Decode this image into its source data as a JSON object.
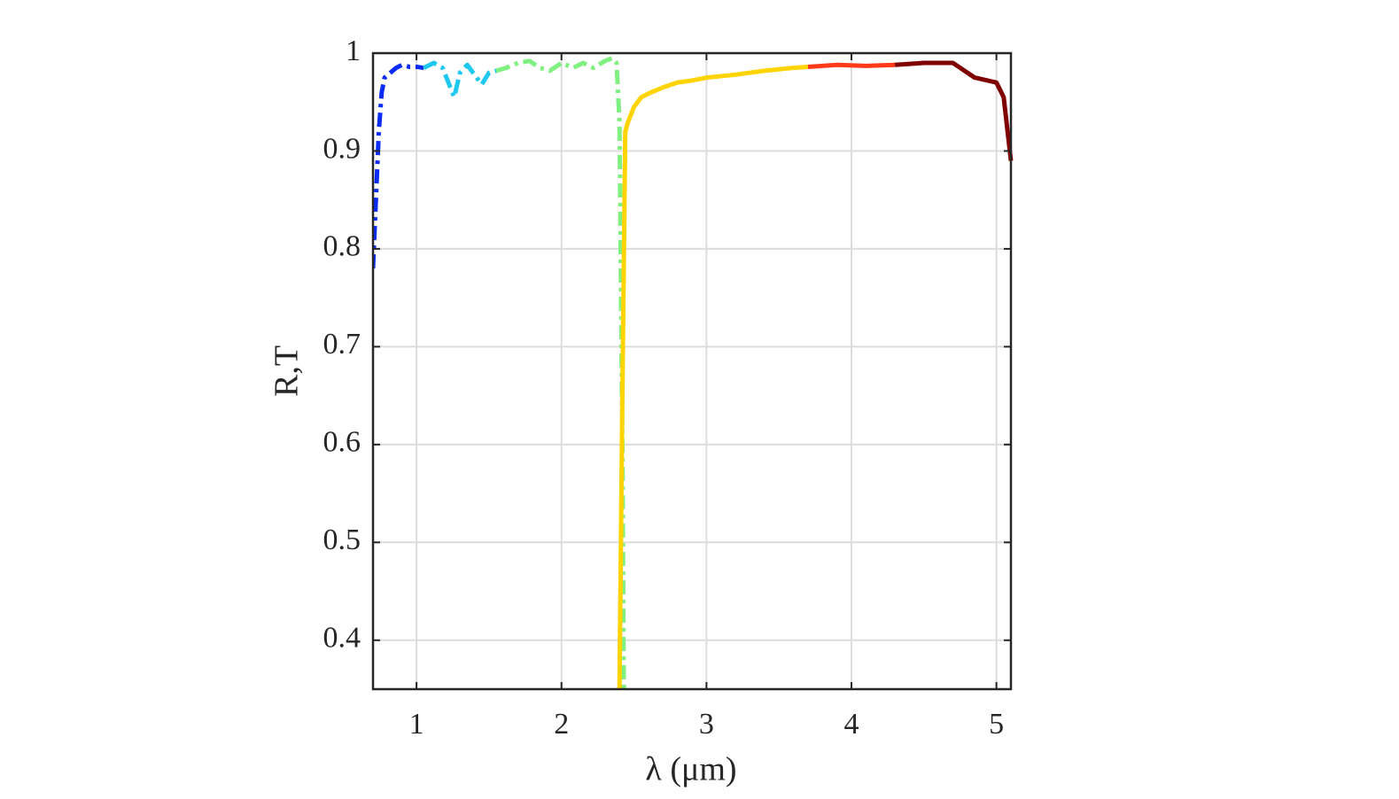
{
  "chart_data": {
    "type": "line",
    "xlabel": "λ (μm)",
    "ylabel": "R,T",
    "xlim": [
      0.7,
      5.1
    ],
    "ylim": [
      0.35,
      1
    ],
    "xticks": [
      1,
      2,
      3,
      4,
      5
    ],
    "yticks": [
      0.4,
      0.5,
      0.6,
      0.7,
      0.8,
      0.9,
      1
    ],
    "grid": true,
    "series": [
      {
        "color": "#0a2cf5",
        "linestyle": "dashdot",
        "x": [
          0.7,
          0.72,
          0.74,
          0.76,
          0.78,
          0.82,
          0.86,
          0.9,
          0.95,
          1.0,
          1.05
        ],
        "values": [
          0.78,
          0.85,
          0.92,
          0.96,
          0.975,
          0.98,
          0.985,
          0.988,
          0.986,
          0.986,
          0.985
        ]
      },
      {
        "color": "#1ec8f0",
        "linestyle": "dashdot",
        "x": [
          1.05,
          1.12,
          1.18,
          1.22,
          1.26,
          1.3,
          1.35,
          1.4,
          1.45,
          1.5,
          1.55
        ],
        "values": [
          0.985,
          0.99,
          0.985,
          0.97,
          0.955,
          0.98,
          0.988,
          0.978,
          0.968,
          0.98,
          0.982
        ]
      },
      {
        "color": "#80f080",
        "linestyle": "dashdot",
        "x": [
          1.55,
          1.62,
          1.7,
          1.78,
          1.85,
          1.92,
          2.0,
          2.08,
          2.15,
          2.22,
          2.3,
          2.35,
          2.38,
          2.4,
          2.42,
          2.43
        ],
        "values": [
          0.982,
          0.985,
          0.99,
          0.992,
          0.985,
          0.982,
          0.99,
          0.985,
          0.99,
          0.985,
          0.992,
          0.995,
          0.99,
          0.93,
          0.6,
          0.35
        ]
      },
      {
        "color": "#ffd400",
        "linestyle": "solid",
        "x": [
          2.4,
          2.42,
          2.44,
          2.46,
          2.5,
          2.55,
          2.62,
          2.7,
          2.8,
          2.9,
          3.0,
          3.2,
          3.4,
          3.6,
          3.7
        ],
        "values": [
          0.35,
          0.65,
          0.92,
          0.93,
          0.945,
          0.955,
          0.96,
          0.965,
          0.97,
          0.972,
          0.975,
          0.978,
          0.982,
          0.985,
          0.986
        ]
      },
      {
        "color": "#ff3a1a",
        "linestyle": "solid",
        "x": [
          3.7,
          3.9,
          4.1,
          4.3
        ],
        "values": [
          0.986,
          0.988,
          0.987,
          0.988
        ]
      },
      {
        "color": "#800000",
        "linestyle": "solid",
        "x": [
          4.3,
          4.5,
          4.7,
          4.85,
          5.0,
          5.05,
          5.1
        ],
        "values": [
          0.988,
          0.99,
          0.99,
          0.975,
          0.97,
          0.955,
          0.89
        ]
      }
    ]
  }
}
